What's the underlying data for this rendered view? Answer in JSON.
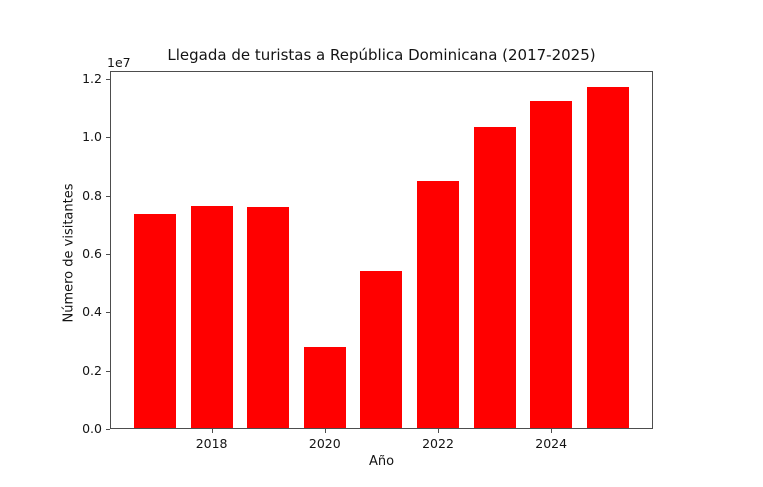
{
  "chart_data": {
    "type": "bar",
    "title": "Llegada de turistas a República Dominicana (2017-2025)",
    "xlabel": "Año",
    "ylabel": "Número de visitantes",
    "y_offset_label": "1e7",
    "categories": [
      "2017",
      "2018",
      "2019",
      "2020",
      "2021",
      "2022",
      "2023",
      "2024",
      "2025"
    ],
    "values": [
      7350000,
      7600000,
      7580000,
      2780000,
      5380000,
      8470000,
      10320000,
      11220000,
      11680000
    ],
    "bar_color": "#ff0000",
    "ylim": [
      0,
      12270000
    ],
    "yticks": {
      "values": [
        0,
        2000000,
        4000000,
        6000000,
        8000000,
        10000000,
        12000000
      ],
      "labels": [
        "0.0",
        "0.2",
        "0.4",
        "0.6",
        "0.8",
        "1.0",
        "1.2"
      ]
    },
    "xticks": {
      "categories": [
        "2018",
        "2020",
        "2022",
        "2024"
      ]
    },
    "grid": false,
    "legend": null
  }
}
